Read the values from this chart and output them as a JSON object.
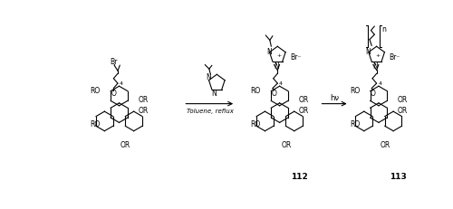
{
  "bg_color": "#ffffff",
  "fig_width": 5.0,
  "fig_height": 2.32,
  "dpi": 100,
  "text_color": "#000000",
  "line_color": "#000000",
  "compound_112": "112",
  "compound_113": "113",
  "reagent2": "hν"
}
